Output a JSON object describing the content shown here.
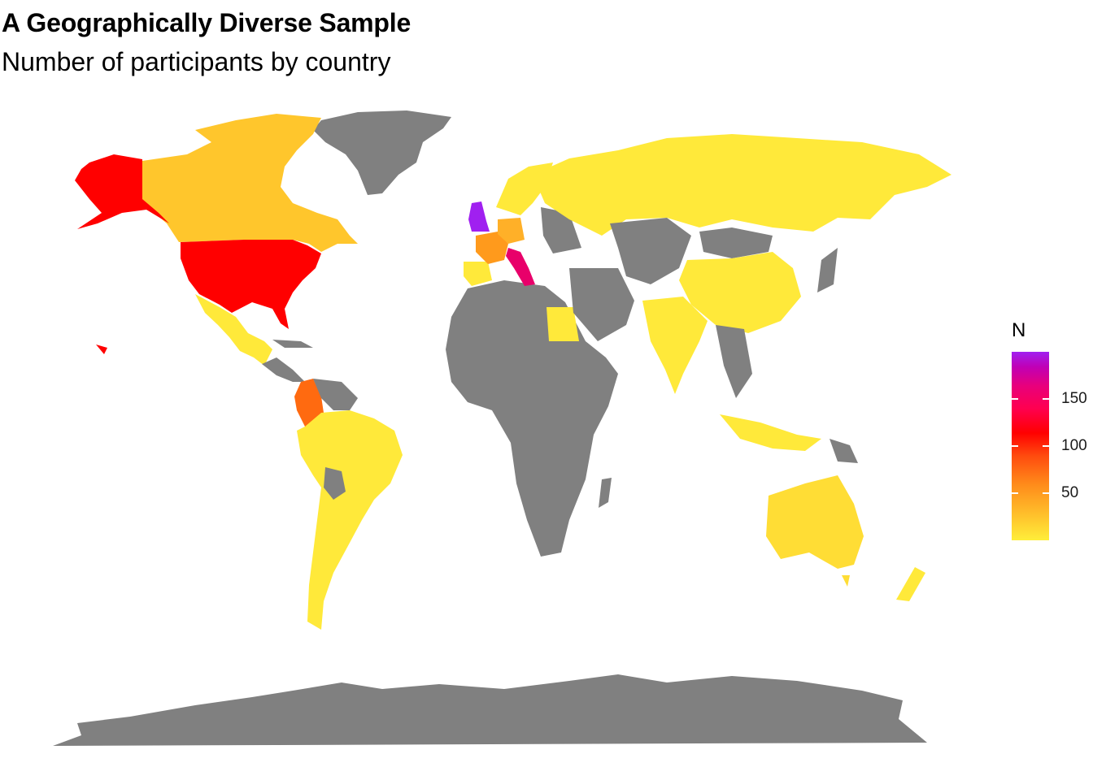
{
  "title": "A Geographically Diverse Sample",
  "subtitle": "Number of participants by country",
  "legend": {
    "title": "N",
    "ticks": [
      {
        "label": "150",
        "value": 150
      },
      {
        "label": "100",
        "value": 100
      },
      {
        "label": "50",
        "value": 50
      }
    ],
    "range": [
      5,
      195
    ],
    "gradient_colors": [
      "#ffee3a",
      "#ffc22c",
      "#ff8a1a",
      "#ff0000",
      "#e8007c",
      "#a020f0"
    ]
  },
  "map": {
    "no_data_color": "#808080",
    "countries": [
      {
        "name": "United Kingdom",
        "color": "#a020f0"
      },
      {
        "name": "Italy",
        "color": "#e8006a"
      },
      {
        "name": "United States",
        "color": "#ff0000"
      },
      {
        "name": "Colombia",
        "color": "#ff6a10"
      },
      {
        "name": "France",
        "color": "#ff9a1c"
      },
      {
        "name": "Germany",
        "color": "#ffb028"
      },
      {
        "name": "Canada",
        "color": "#ffc62c"
      },
      {
        "name": "Australia",
        "color": "#ffdd35"
      },
      {
        "name": "Russia",
        "color": "#ffe93a"
      },
      {
        "name": "China",
        "color": "#ffe93a"
      },
      {
        "name": "India",
        "color": "#ffe93a"
      },
      {
        "name": "Brazil",
        "color": "#ffe93a"
      },
      {
        "name": "Mexico",
        "color": "#ffe93a"
      },
      {
        "name": "Argentina",
        "color": "#ffe93a"
      },
      {
        "name": "Spain",
        "color": "#ffe93a"
      },
      {
        "name": "Egypt",
        "color": "#ffe93a"
      }
    ]
  }
}
